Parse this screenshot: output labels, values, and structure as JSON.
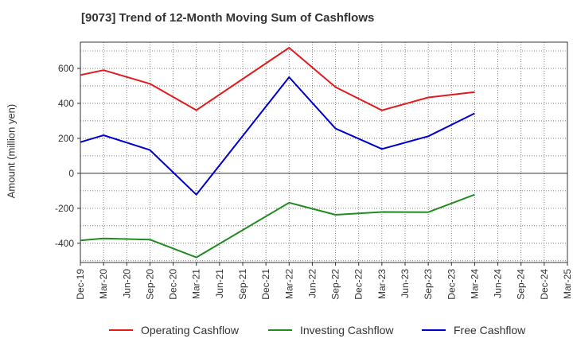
{
  "chart_data": {
    "type": "line",
    "title": "[9073]  Trend of 12-Month Moving Sum of Cashflows",
    "xlabel": "",
    "ylabel": "Amount (million yen)",
    "categories": [
      "Dec-19",
      "Mar-20",
      "Jun-20",
      "Sep-20",
      "Dec-20",
      "Mar-21",
      "Jun-21",
      "Sep-21",
      "Dec-21",
      "Mar-22",
      "Jun-22",
      "Sep-22",
      "Dec-22",
      "Mar-23",
      "Jun-23",
      "Sep-23",
      "Dec-23",
      "Mar-24",
      "Jun-24",
      "Sep-24",
      "Dec-24",
      "Mar-25"
    ],
    "ylim": [
      -510,
      750
    ],
    "yticks": [
      -400,
      -200,
      0,
      200,
      400,
      600
    ],
    "grid": true,
    "legend_position": "bottom",
    "series": [
      {
        "name": "Operating Cashflow",
        "color": "#e31a1c",
        "values": [
          562,
          590,
          null,
          512,
          null,
          361,
          null,
          null,
          null,
          718,
          null,
          493,
          null,
          360,
          null,
          434,
          null,
          465,
          null,
          null,
          null,
          null
        ]
      },
      {
        "name": "Investing Cashflow",
        "color": "#228b22",
        "values": [
          -384,
          -372,
          null,
          -379,
          null,
          -481,
          null,
          null,
          null,
          -168,
          null,
          -237,
          null,
          -221,
          null,
          -222,
          null,
          -122,
          null,
          null,
          null,
          null
        ]
      },
      {
        "name": "Free Cashflow",
        "color": "#0000cc",
        "values": [
          178,
          218,
          null,
          133,
          null,
          -122,
          null,
          null,
          null,
          550,
          null,
          256,
          null,
          139,
          null,
          212,
          null,
          343,
          null,
          null,
          null,
          null
        ]
      }
    ]
  }
}
